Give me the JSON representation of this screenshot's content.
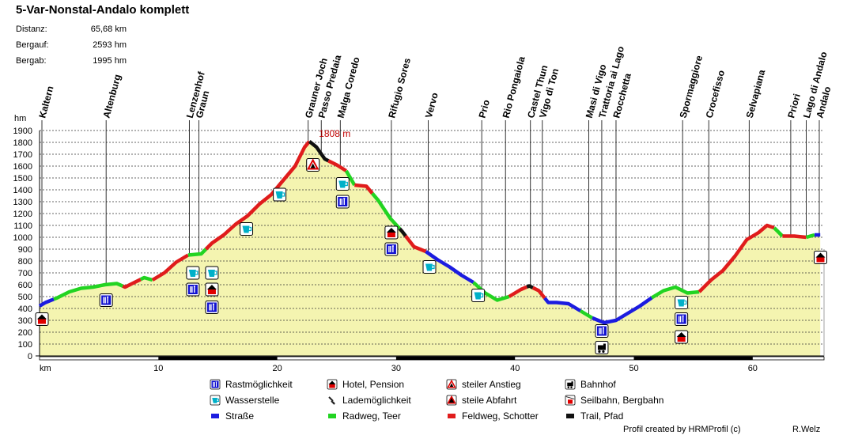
{
  "header": {
    "title": "5-Var-Nonstal-Andalo komplett",
    "stats": [
      {
        "label": "Distanz:",
        "value": "65,68 km"
      },
      {
        "label": "Bergauf:",
        "value": "2593 hm"
      },
      {
        "label": "Bergab:",
        "value": "1995 hm"
      }
    ]
  },
  "chart_data": {
    "type": "area",
    "ylabel": "hm",
    "xlabel": "km",
    "xlim": [
      0,
      66
    ],
    "ylim": [
      0,
      1900
    ],
    "x_ticks": [
      10,
      20,
      30,
      40,
      50,
      60
    ],
    "y_ticks": [
      0,
      100,
      200,
      300,
      400,
      500,
      600,
      700,
      800,
      900,
      1000,
      1100,
      1200,
      1300,
      1400,
      1500,
      1600,
      1700,
      1800,
      1900
    ],
    "grid": true,
    "max_label": "1808 m",
    "max_point": {
      "km": 22.7,
      "hm": 1808
    },
    "profile": [
      [
        0,
        420
      ],
      [
        0.5,
        450
      ],
      [
        1.5,
        490
      ],
      [
        2.5,
        540
      ],
      [
        3.5,
        570
      ],
      [
        4.5,
        580
      ],
      [
        5.5,
        600
      ],
      [
        6.5,
        610
      ],
      [
        7.2,
        580
      ],
      [
        8,
        620
      ],
      [
        8.8,
        660
      ],
      [
        9.5,
        640
      ],
      [
        10.5,
        700
      ],
      [
        11.5,
        790
      ],
      [
        12.5,
        850
      ],
      [
        13.6,
        860
      ],
      [
        14.5,
        950
      ],
      [
        15.5,
        1020
      ],
      [
        16.5,
        1110
      ],
      [
        17.5,
        1180
      ],
      [
        18.5,
        1280
      ],
      [
        19.5,
        1360
      ],
      [
        20.5,
        1480
      ],
      [
        21.5,
        1600
      ],
      [
        22.3,
        1760
      ],
      [
        22.7,
        1808
      ],
      [
        23.3,
        1760
      ],
      [
        24,
        1660
      ],
      [
        25,
        1610
      ],
      [
        25.8,
        1560
      ],
      [
        26.5,
        1440
      ],
      [
        27.5,
        1430
      ],
      [
        28.5,
        1310
      ],
      [
        29.5,
        1160
      ],
      [
        30.5,
        1050
      ],
      [
        31.5,
        920
      ],
      [
        32.5,
        880
      ],
      [
        33.5,
        810
      ],
      [
        34.5,
        750
      ],
      [
        35.5,
        680
      ],
      [
        36.5,
        620
      ],
      [
        37.5,
        530
      ],
      [
        38.5,
        470
      ],
      [
        39.5,
        500
      ],
      [
        40.5,
        560
      ],
      [
        41.2,
        590
      ],
      [
        42,
        550
      ],
      [
        42.8,
        450
      ],
      [
        43.5,
        450
      ],
      [
        44.5,
        440
      ],
      [
        45.5,
        380
      ],
      [
        46.5,
        320
      ],
      [
        47.5,
        280
      ],
      [
        48.5,
        300
      ],
      [
        49.5,
        360
      ],
      [
        50.5,
        420
      ],
      [
        51.5,
        490
      ],
      [
        52.5,
        550
      ],
      [
        53.5,
        580
      ],
      [
        54.5,
        530
      ],
      [
        55.5,
        540
      ],
      [
        56.5,
        640
      ],
      [
        57.5,
        720
      ],
      [
        58.5,
        840
      ],
      [
        59.5,
        980
      ],
      [
        60.5,
        1040
      ],
      [
        61.2,
        1100
      ],
      [
        61.8,
        1080
      ],
      [
        62.5,
        1010
      ],
      [
        63.5,
        1010
      ],
      [
        64.5,
        1000
      ],
      [
        65.2,
        1020
      ],
      [
        65.68,
        1020
      ]
    ],
    "segments": [
      {
        "from": 0,
        "to": 1.2,
        "surface": "road"
      },
      {
        "from": 1.2,
        "to": 7,
        "surface": "cycle"
      },
      {
        "from": 7,
        "to": 8.5,
        "surface": "gravel"
      },
      {
        "from": 8.5,
        "to": 9.5,
        "surface": "cycle"
      },
      {
        "from": 9.5,
        "to": 12.5,
        "surface": "gravel"
      },
      {
        "from": 12.5,
        "to": 14,
        "surface": "cycle"
      },
      {
        "from": 14,
        "to": 22.7,
        "surface": "gravel"
      },
      {
        "from": 22.7,
        "to": 24.3,
        "surface": "trail"
      },
      {
        "from": 24.3,
        "to": 25.8,
        "surface": "gravel"
      },
      {
        "from": 25.8,
        "to": 26.5,
        "surface": "cycle"
      },
      {
        "from": 26.5,
        "to": 28,
        "surface": "gravel"
      },
      {
        "from": 28,
        "to": 30.3,
        "surface": "cycle"
      },
      {
        "from": 30.3,
        "to": 30.8,
        "surface": "trail"
      },
      {
        "from": 30.8,
        "to": 32.5,
        "surface": "gravel"
      },
      {
        "from": 32.5,
        "to": 36.5,
        "surface": "road"
      },
      {
        "from": 36.5,
        "to": 39.5,
        "surface": "cycle"
      },
      {
        "from": 39.5,
        "to": 41,
        "surface": "gravel"
      },
      {
        "from": 41,
        "to": 41.5,
        "surface": "trail"
      },
      {
        "from": 41.5,
        "to": 42.5,
        "surface": "gravel"
      },
      {
        "from": 42.5,
        "to": 45.5,
        "surface": "road"
      },
      {
        "from": 45.5,
        "to": 46.5,
        "surface": "cycle"
      },
      {
        "from": 46.5,
        "to": 51.5,
        "surface": "road"
      },
      {
        "from": 51.5,
        "to": 55.5,
        "surface": "cycle"
      },
      {
        "from": 55.5,
        "to": 61.8,
        "surface": "gravel"
      },
      {
        "from": 61.8,
        "to": 62.5,
        "surface": "cycle"
      },
      {
        "from": 62.5,
        "to": 64.5,
        "surface": "gravel"
      },
      {
        "from": 64.5,
        "to": 65.2,
        "surface": "cycle"
      },
      {
        "from": 65.2,
        "to": 65.68,
        "surface": "road"
      }
    ],
    "waypoints": [
      {
        "name": "Kaltern",
        "km": 0.2
      },
      {
        "name": "Altenburg",
        "km": 5.6
      },
      {
        "name": "Lenzenhof",
        "km": 12.6
      },
      {
        "name": "Graun",
        "km": 13.4
      },
      {
        "name": "Grauner Joch",
        "km": 22.6
      },
      {
        "name": "Passo Predaia",
        "km": 23.7
      },
      {
        "name": "Malga Coredo",
        "km": 25.3
      },
      {
        "name": "Rifugio Sores",
        "km": 29.6
      },
      {
        "name": "Vervo",
        "km": 32.7
      },
      {
        "name": "Prio",
        "km": 37.2
      },
      {
        "name": "Rio Pongaiola",
        "km": 39.2
      },
      {
        "name": "Castel Thun",
        "km": 41.3
      },
      {
        "name": "Vigo di Ton",
        "km": 42.3
      },
      {
        "name": "Masi di Vigo",
        "km": 46.2
      },
      {
        "name": "Trattoria ai Lago",
        "km": 47.3
      },
      {
        "name": "Rocchetta",
        "km": 48.5
      },
      {
        "name": "Spormaggiore",
        "km": 54.1
      },
      {
        "name": "Crocefisso",
        "km": 56.3
      },
      {
        "name": "Selvapiana",
        "km": 59.7
      },
      {
        "name": "Priori",
        "km": 63.2
      },
      {
        "name": "Lago di Andalo",
        "km": 64.5
      },
      {
        "name": "Andalo",
        "km": 65.6
      }
    ],
    "markers": [
      {
        "km": 0.2,
        "hm": 310,
        "icon": "hotel"
      },
      {
        "km": 5.6,
        "hm": 470,
        "icon": "restaurant"
      },
      {
        "km": 12.9,
        "hm": 700,
        "icon": "water"
      },
      {
        "km": 12.9,
        "hm": 560,
        "icon": "restaurant"
      },
      {
        "km": 14.5,
        "hm": 700,
        "icon": "water"
      },
      {
        "km": 14.5,
        "hm": 560,
        "icon": "hotel"
      },
      {
        "km": 14.5,
        "hm": 410,
        "icon": "restaurant"
      },
      {
        "km": 17.4,
        "hm": 1070,
        "icon": "water"
      },
      {
        "km": 20.2,
        "hm": 1360,
        "icon": "water"
      },
      {
        "km": 23.0,
        "hm": 1610,
        "icon": "steep-up"
      },
      {
        "km": 25.5,
        "hm": 1450,
        "icon": "water"
      },
      {
        "km": 25.5,
        "hm": 1300,
        "icon": "restaurant"
      },
      {
        "km": 29.6,
        "hm": 1040,
        "icon": "hotel"
      },
      {
        "km": 29.6,
        "hm": 900,
        "icon": "restaurant"
      },
      {
        "km": 32.8,
        "hm": 750,
        "icon": "water"
      },
      {
        "km": 36.9,
        "hm": 510,
        "icon": "water"
      },
      {
        "km": 47.3,
        "hm": 210,
        "icon": "restaurant"
      },
      {
        "km": 47.3,
        "hm": 70,
        "icon": "train"
      },
      {
        "km": 54.0,
        "hm": 450,
        "icon": "water"
      },
      {
        "km": 54.0,
        "hm": 310,
        "icon": "restaurant"
      },
      {
        "km": 54.0,
        "hm": 160,
        "icon": "hotel"
      },
      {
        "km": 65.7,
        "hm": 830,
        "icon": "hotel"
      }
    ],
    "legend": {
      "placement": "bottom",
      "items": [
        {
          "label": "Rastmöglichkeit",
          "icon": "restaurant"
        },
        {
          "label": "Hotel, Pension",
          "icon": "hotel"
        },
        {
          "label": "steiler Anstieg",
          "icon": "steep-up"
        },
        {
          "label": "Bahnhof",
          "icon": "train"
        },
        {
          "label": "Wasserstelle",
          "icon": "water"
        },
        {
          "label": "Lademöglichkeit",
          "icon": "charging"
        },
        {
          "label": "steile Abfahrt",
          "icon": "steep-down"
        },
        {
          "label": "Seilbahn, Bergbahn",
          "icon": "cablecar"
        },
        {
          "label": "Straße",
          "icon": "road"
        },
        {
          "label": "Radweg, Teer",
          "icon": "cycle"
        },
        {
          "label": "Feldweg, Schotter",
          "icon": "gravel"
        },
        {
          "label": "Trail, Pfad",
          "icon": "trail"
        }
      ]
    }
  },
  "colors": {
    "road": "#1c1ce0",
    "cycle": "#22d422",
    "gravel": "#e01c1c",
    "trail": "#111111",
    "fill": "#f4f4b0",
    "icon_blue": "#1010d0",
    "icon_water": "#00b0c8",
    "icon_red": "#e00000"
  },
  "footer": {
    "credit": "Profil created by HRMProfil (c)",
    "author": "R.Welz"
  }
}
